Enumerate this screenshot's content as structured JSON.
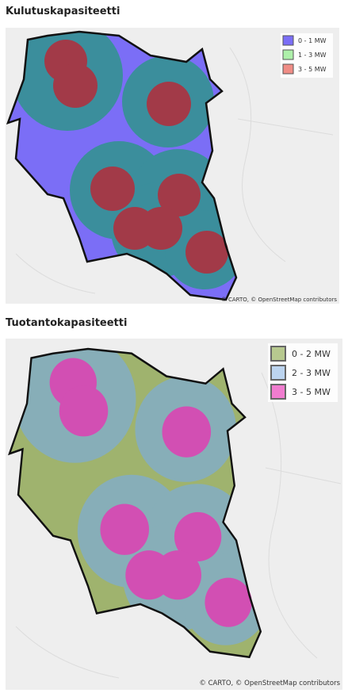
{
  "maps": [
    {
      "title": "Kulutuskapasiteetti",
      "legend": [
        "0 - 1 MW",
        "1 - 3 MW",
        "3 - 5 MW"
      ],
      "attribution": "© CARTO, © OpenStreetMap contributors"
    },
    {
      "title": "Tuotantokapasiteetti",
      "legend": [
        "0 - 2 MW",
        "2 - 3 MW",
        "3 - 5 MW"
      ],
      "attribution": "© CARTO, © OpenStreetMap contributors"
    }
  ]
}
